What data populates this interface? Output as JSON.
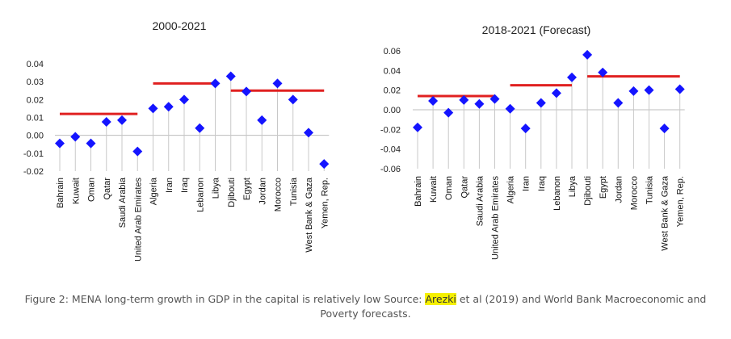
{
  "chart_data": [
    {
      "type": "scatter",
      "title": "2000-2021",
      "xlabel": "",
      "ylabel": "",
      "ylim": [
        -0.02,
        0.04
      ],
      "yticks": [
        "0.04",
        "0.03",
        "0.02",
        "0.01",
        "0.00",
        "-0.01",
        "-0.02"
      ],
      "categories": [
        "Bahrain",
        "Kuwait",
        "Oman",
        "Qatar",
        "Saudi Arabia",
        "United Arab Emirates",
        "Algeria",
        "Iran",
        "Iraq",
        "Lebanon",
        "Libya",
        "Djibouti",
        "Egypt",
        "Jordan",
        "Morocco",
        "Tunisia",
        "West Bank & Gaza",
        "Yemen, Rep."
      ],
      "values": [
        -0.0045,
        -0.0008,
        -0.0045,
        0.0075,
        0.0085,
        -0.009,
        0.015,
        0.016,
        0.02,
        0.004,
        0.029,
        0.033,
        0.0245,
        0.0085,
        0.029,
        0.02,
        0.0015,
        -0.016
      ],
      "group_averages": [
        {
          "from": 0,
          "to": 5,
          "value": 0.012
        },
        {
          "from": 6,
          "to": 10,
          "value": 0.029
        },
        {
          "from": 11,
          "to": 17,
          "value": 0.025
        }
      ],
      "marker_color": "#1414ff",
      "average_line_color": "#e02020",
      "grid": false
    },
    {
      "type": "scatter",
      "title": "2018-2021 (Forecast)",
      "xlabel": "",
      "ylabel": "",
      "ylim": [
        -0.06,
        0.06
      ],
      "yticks": [
        "0.06",
        "0.04",
        "0.02",
        "0.00",
        "-0.02",
        "-0.04",
        "-0.06"
      ],
      "categories": [
        "Bahrain",
        "Kuwait",
        "Oman",
        "Qatar",
        "Saudi Arabia",
        "United Arab Emirates",
        "Algeria",
        "Iran",
        "Iraq",
        "Lebanon",
        "Libya",
        "Djibouti",
        "Egypt",
        "Jordan",
        "Morocco",
        "Tunisia",
        "West Bank & Gaza",
        "Yemen, Rep."
      ],
      "values": [
        -0.018,
        0.009,
        -0.003,
        0.01,
        0.006,
        0.011,
        0.001,
        -0.019,
        0.007,
        0.017,
        0.033,
        0.056,
        0.038,
        0.007,
        0.019,
        0.02,
        -0.019,
        0.021
      ],
      "group_averages": [
        {
          "from": 0,
          "to": 5,
          "value": 0.014
        },
        {
          "from": 6,
          "to": 10,
          "value": 0.025
        },
        {
          "from": 11,
          "to": 17,
          "value": 0.034
        }
      ],
      "marker_color": "#1414ff",
      "average_line_color": "#e02020",
      "grid": false
    }
  ],
  "caption": {
    "before": "Figure 2: MENA long-term growth in GDP in the capital is relatively low Source: ",
    "highlight": "Arezki",
    "after": " et al (2019) and World Bank Macroeconomic and Poverty forecasts."
  }
}
